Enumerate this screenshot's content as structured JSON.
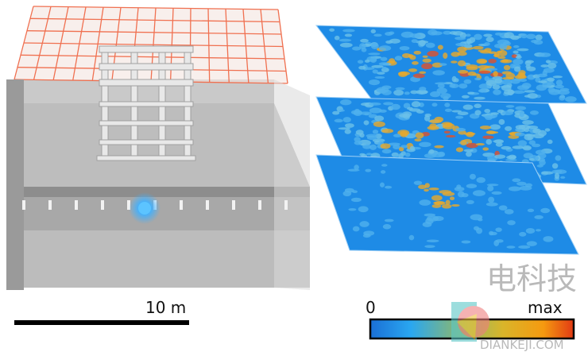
{
  "scale_bar": {
    "label": "10 m"
  },
  "colorbar": {
    "min_label": "0",
    "max_label": "max",
    "colors": [
      "#1a6fd6",
      "#2aa7f0",
      "#8fb86a",
      "#d9b52a",
      "#f59a10",
      "#e23a14"
    ]
  },
  "layers": {
    "count": 3,
    "base_color": "#1e8be6",
    "hot_color": "#e8a92a"
  },
  "scene": {
    "light_color": "#4db8ff",
    "grid_color": "#f07050"
  },
  "watermark": {
    "text": "电科技",
    "subtext": "DIANKEJI.COM"
  }
}
